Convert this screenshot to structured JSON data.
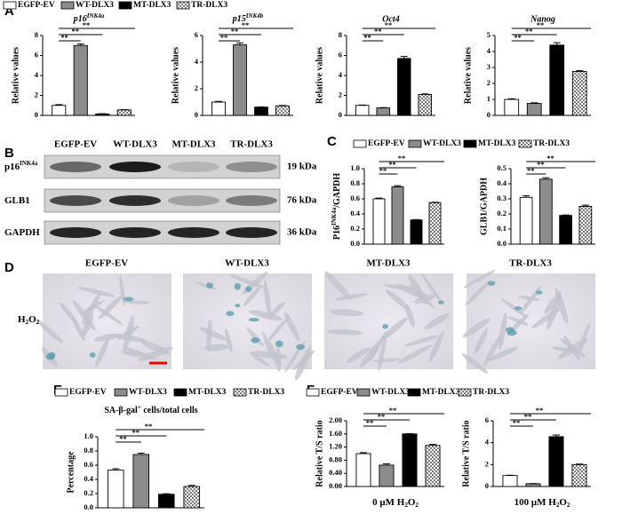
{
  "panel_labels": [
    "A",
    "B",
    "C",
    "D",
    "E",
    "F"
  ],
  "groups": [
    {
      "name": "EGFP-EV",
      "color": "#ffffff"
    },
    {
      "name": "WT-DLX3",
      "color": "#8c8c8c"
    },
    {
      "name": "MT-DLX3",
      "color": "#000000"
    },
    {
      "name": "TR-DLX3",
      "color": "#9a9a9a",
      "pattern": "checker"
    }
  ],
  "blot": {
    "rows": [
      {
        "label": [
          {
            "t": "p16"
          },
          {
            "t": "INK4a",
            "sup": true
          }
        ],
        "size": "19 kDa"
      },
      {
        "label": [
          {
            "t": "GLB1"
          }
        ],
        "size": "76 kDa"
      },
      {
        "label": [
          {
            "t": "GAPDH"
          }
        ],
        "size": "36 kDa"
      }
    ]
  },
  "microscopy": {
    "row_label": [
      {
        "t": "H"
      },
      {
        "t": "2",
        "sub": true
      },
      {
        "t": "O"
      },
      {
        "t": "2",
        "sub": true
      }
    ]
  },
  "chart_data": [
    {
      "type": "bar",
      "title": [
        {
          "t": "p16"
        },
        {
          "t": "INK4a",
          "sup": true
        }
      ],
      "ylabel": "Relative values",
      "values": [
        1.0,
        7.0,
        0.15,
        0.55
      ],
      "errors": [
        0.08,
        0.15,
        0.02,
        0.03
      ],
      "ylim": [
        0,
        8
      ],
      "yticks": [
        0,
        2,
        4,
        6,
        8
      ],
      "brackets": [
        {
          "from": 0,
          "to": 1,
          "label": "**"
        },
        {
          "from": 0,
          "to": 2,
          "label": "**"
        },
        {
          "from": 0,
          "to": 3,
          "label": "**"
        }
      ]
    },
    {
      "type": "bar",
      "title": [
        {
          "t": "p15"
        },
        {
          "t": "INK4b",
          "sup": true
        }
      ],
      "ylabel": "Relative values",
      "values": [
        1.0,
        5.3,
        0.62,
        0.72
      ],
      "errors": [
        0.05,
        0.15,
        0.02,
        0.03
      ],
      "ylim": [
        0,
        6
      ],
      "yticks": [
        0,
        2,
        4,
        6
      ],
      "brackets": [
        {
          "from": 0,
          "to": 1,
          "label": "**"
        },
        {
          "from": 0,
          "to": 2,
          "label": "**"
        },
        {
          "from": 0,
          "to": 3,
          "label": "**"
        }
      ]
    },
    {
      "type": "bar",
      "title": "Oct4",
      "ylabel": "Relative values",
      "values": [
        1.0,
        0.75,
        5.7,
        2.1
      ],
      "errors": [
        0.04,
        0.03,
        0.2,
        0.05
      ],
      "ylim": [
        0,
        8
      ],
      "yticks": [
        0,
        2,
        4,
        6,
        8
      ],
      "brackets": [
        {
          "from": 0,
          "to": 1,
          "label": "**"
        },
        {
          "from": 0,
          "to": 2,
          "label": "**"
        },
        {
          "from": 0,
          "to": 3,
          "label": "**"
        }
      ]
    },
    {
      "type": "bar",
      "title": "Nanog",
      "ylabel": "Relative values",
      "values": [
        1.0,
        0.75,
        4.4,
        2.75
      ],
      "errors": [
        0.04,
        0.04,
        0.15,
        0.05
      ],
      "ylim": [
        0,
        5
      ],
      "yticks": [
        0,
        1,
        2,
        3,
        4,
        5
      ],
      "brackets": [
        {
          "from": 0,
          "to": 1,
          "label": "**"
        },
        {
          "from": 0,
          "to": 2,
          "label": "**"
        },
        {
          "from": 0,
          "to": 3,
          "label": "**"
        }
      ]
    },
    {
      "type": "bar",
      "ylabel": [
        {
          "t": "P16"
        },
        {
          "t": "INK4a",
          "sup": true
        },
        {
          "t": "/GAPDH"
        }
      ],
      "values": [
        0.6,
        0.76,
        0.32,
        0.55
      ],
      "errors": [
        0.01,
        0.015,
        0.005,
        0.005
      ],
      "ylim": [
        0,
        1
      ],
      "yticks": [
        {
          "value": 0,
          "label": "0.0"
        },
        0.2,
        0.4,
        0.6,
        0.8,
        {
          "value": 1,
          "label": "1.0"
        }
      ],
      "brackets": [
        {
          "from": 0,
          "to": 1,
          "label": "**"
        },
        {
          "from": 0,
          "to": 2,
          "label": "**"
        },
        {
          "from": 0,
          "to": 3,
          "label": "**"
        }
      ]
    },
    {
      "type": "bar",
      "ylabel": "GLB1/GAPDH",
      "values": [
        0.31,
        0.43,
        0.19,
        0.25
      ],
      "errors": [
        0.01,
        0.01,
        0.003,
        0.008
      ],
      "ylim": [
        0,
        0.5
      ],
      "yticks": [
        {
          "value": 0,
          "label": "0.0"
        },
        0.1,
        0.2,
        0.3,
        0.4,
        0.5
      ],
      "brackets": [
        {
          "from": 0,
          "to": 1,
          "label": "**"
        },
        {
          "from": 0,
          "to": 2,
          "label": "**"
        },
        {
          "from": 0,
          "to": 3,
          "label": "**"
        }
      ]
    },
    {
      "type": "bar",
      "title": [
        {
          "t": "SA-β-gal"
        },
        {
          "t": "+",
          "sup": true
        },
        {
          "t": " cells/total cells"
        }
      ],
      "ylabel": "Percentage",
      "values": [
        0.53,
        0.75,
        0.19,
        0.3
      ],
      "errors": [
        0.02,
        0.02,
        0.008,
        0.015
      ],
      "ylim": [
        0,
        1
      ],
      "yticks": [
        {
          "value": 0,
          "label": "0.0"
        },
        0.2,
        0.4,
        0.6,
        0.8,
        {
          "value": 1,
          "label": "1.0"
        }
      ],
      "brackets": [
        {
          "from": 0,
          "to": 1,
          "label": "**"
        },
        {
          "from": 0,
          "to": 2,
          "label": "**"
        },
        {
          "from": 0,
          "to": 3,
          "label": "**"
        }
      ]
    },
    {
      "type": "bar",
      "ylabel": "Relative T/S ratio",
      "xlabel": [
        {
          "t": "0 μM H"
        },
        {
          "t": "2",
          "sub": true
        },
        {
          "t": "O"
        },
        {
          "t": "2",
          "sub": true
        }
      ],
      "values": [
        1.0,
        0.65,
        1.6,
        1.25
      ],
      "errors": [
        0.03,
        0.04,
        0.01,
        0.03
      ],
      "ylim": [
        0,
        2
      ],
      "yticks": [
        {
          "value": 0,
          "label": "0.00"
        },
        {
          "value": 0.4,
          "label": "0.40"
        },
        {
          "value": 0.8,
          "label": "0.80"
        },
        {
          "value": 1.2,
          "label": "1.20"
        },
        {
          "value": 1.6,
          "label": "1.60"
        },
        {
          "value": 2,
          "label": "2.00"
        }
      ],
      "brackets": [
        {
          "from": 0,
          "to": 1,
          "label": "**"
        },
        {
          "from": 0,
          "to": 2,
          "label": "**"
        },
        {
          "from": 0,
          "to": 3,
          "label": "**"
        }
      ]
    },
    {
      "type": "bar",
      "ylabel": "Relative T/S ratio",
      "xlabel": [
        {
          "t": "100 μM H"
        },
        {
          "t": "2",
          "sub": true
        },
        {
          "t": "O"
        },
        {
          "t": "2",
          "sub": true
        }
      ],
      "values": [
        1.0,
        0.25,
        4.55,
        2.0
      ],
      "errors": [
        0.03,
        0.02,
        0.15,
        0.05
      ],
      "ylim": [
        0,
        6
      ],
      "yticks": [
        0,
        2,
        4,
        6
      ],
      "brackets": [
        {
          "from": 0,
          "to": 1,
          "label": "**"
        },
        {
          "from": 0,
          "to": 2,
          "label": "**"
        },
        {
          "from": 0,
          "to": 3,
          "label": "**"
        }
      ]
    }
  ]
}
